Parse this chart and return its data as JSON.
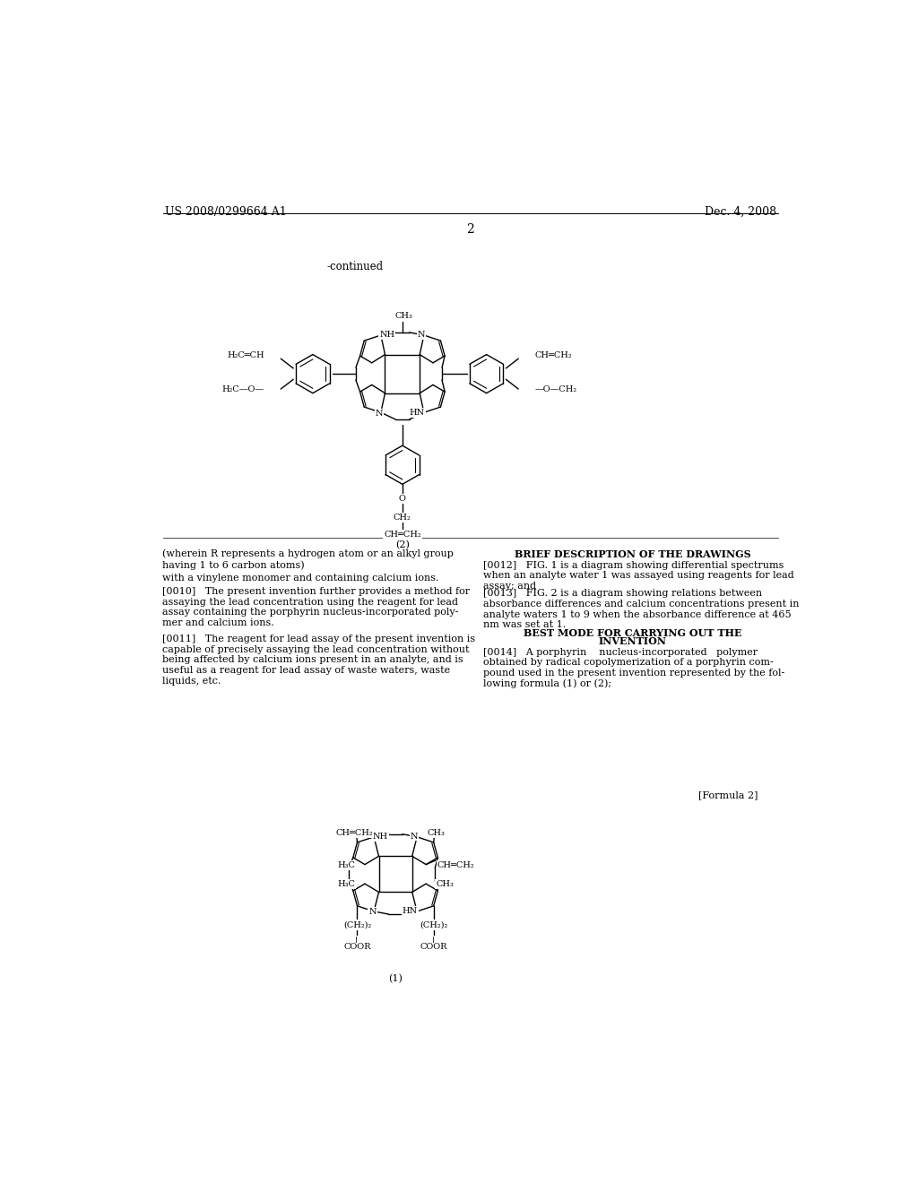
{
  "background_color": "#ffffff",
  "page_number": "2",
  "header_left": "US 2008/0299664 A1",
  "header_right": "Dec. 4, 2008",
  "continued_label": "-continued",
  "formula2_label": "[Formula 2]",
  "formula1_paren_label": "(1)",
  "formula2_paren_label": "(2)",
  "section_title_drawings": "BRIEF DESCRIPTION OF THE DRAWINGS",
  "section_title_bestmode_line1": "BEST MODE FOR CARRYING OUT THE",
  "section_title_bestmode_line2": "INVENTION",
  "para_left_1": "(wherein R represents a hydrogen atom or an alkyl group\nhaving 1 to 6 carbon atoms)",
  "para_left_2": "with a vinylene monomer and containing calcium ions.",
  "para_0010": "[0010]   The present invention further provides a method for\nassaying the lead concentration using the reagent for lead\nassay containing the porphyrin nucleus-incorporated poly-\nmer and calcium ions.",
  "para_0011": "[0011]   The reagent for lead assay of the present invention is\ncapable of precisely assaying the lead concentration without\nbeing affected by calcium ions present in an analyte, and is\nuseful as a reagent for lead assay of waste waters, waste\nliquids, etc.",
  "para_0012": "[0012]   FIG. 1 is a diagram showing differential spectrums\nwhen an analyte water 1 was assayed using reagents for lead\nassay; and",
  "para_0013": "[0013]   FIG. 2 is a diagram showing relations between\nabsorbance differences and calcium concentrations present in\nanalyte waters 1 to 9 when the absorbance difference at 465\nnm was set at 1.",
  "para_0014": "[0014]   A porphyrin    nucleus-incorporated   polymer\nobtained by radical copolymerization of a porphyrin com-\npound used in the present invention represented by the fol-\nlowing formula (1) or (2);"
}
